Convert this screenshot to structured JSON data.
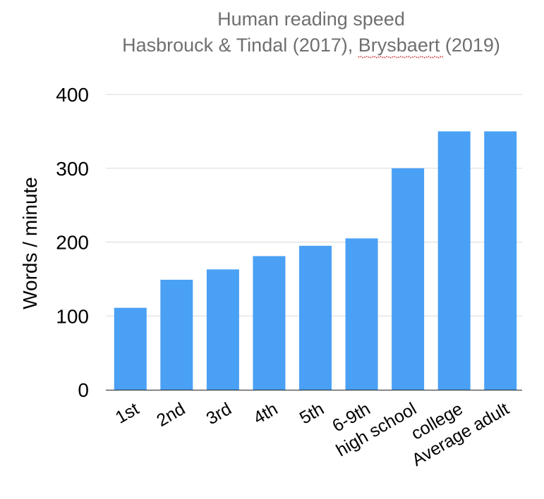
{
  "chart_data": {
    "type": "bar",
    "title": "Human reading speed",
    "subtitle_parts": [
      "Hasbrouck & Tindal (2017), ",
      "Brysbaert",
      " (2019)"
    ],
    "xlabel": "",
    "ylabel": "Words / minute",
    "ylim": [
      0,
      400
    ],
    "yticks": [
      0,
      100,
      200,
      300,
      400
    ],
    "grid": true,
    "legend": "none",
    "bar_color": "#4aa0f5",
    "categories": [
      "1st",
      "2nd",
      "3rd",
      "4th",
      "5th",
      "6-9th",
      "high school",
      "college",
      "Average adult"
    ],
    "values": [
      111,
      149,
      163,
      181,
      195,
      205,
      300,
      350,
      350
    ]
  }
}
